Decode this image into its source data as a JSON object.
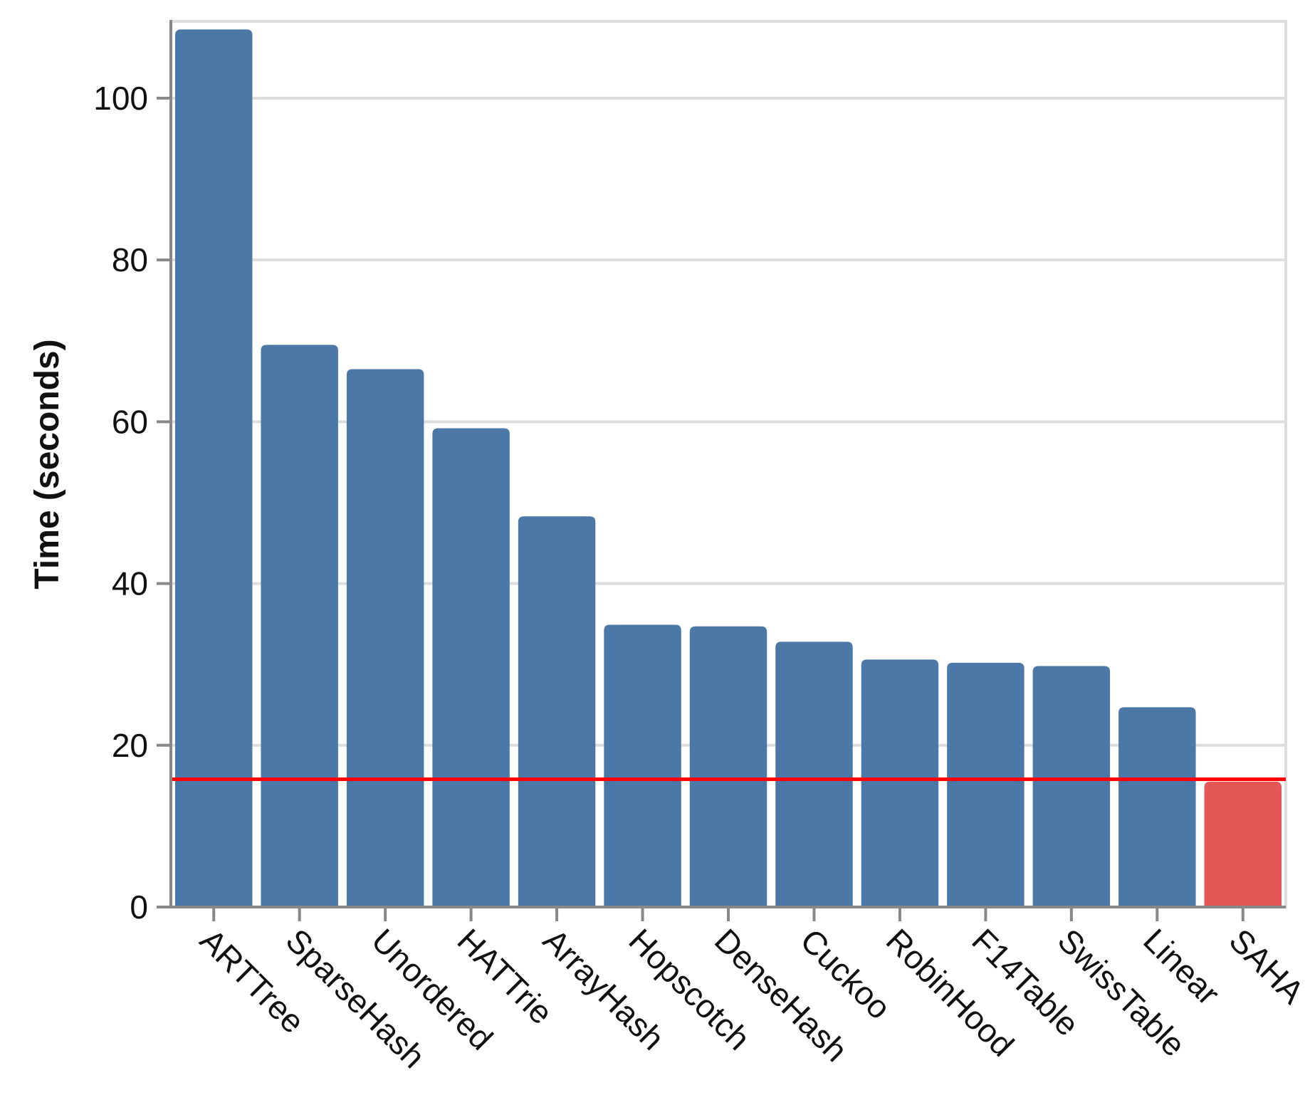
{
  "chart_data": {
    "type": "bar",
    "title": "",
    "xlabel": "",
    "ylabel": "Time (seconds)",
    "categories": [
      "ARTTree",
      "SparseHash",
      "Unordered",
      "HATTrie",
      "ArrayHash",
      "Hopscotch",
      "DenseHash",
      "Cuckoo",
      "RobinHood",
      "F14Table",
      "SwissTable",
      "Linear",
      "SAHA"
    ],
    "values": [
      108.5,
      69.5,
      66.5,
      59.2,
      48.3,
      34.9,
      34.7,
      32.8,
      30.6,
      30.2,
      29.8,
      24.7,
      15.5
    ],
    "highlight": "SAHA",
    "reference_line": 15.8,
    "ylim": [
      0,
      109.5
    ],
    "yticks": [
      0,
      20,
      40,
      60,
      80,
      100
    ],
    "grid": true,
    "colors": {
      "bar": "#4c78a8",
      "highlight": "#e45756",
      "reference_line": "#ff0000",
      "grid": "#dddddd",
      "axis": "#888888"
    }
  }
}
